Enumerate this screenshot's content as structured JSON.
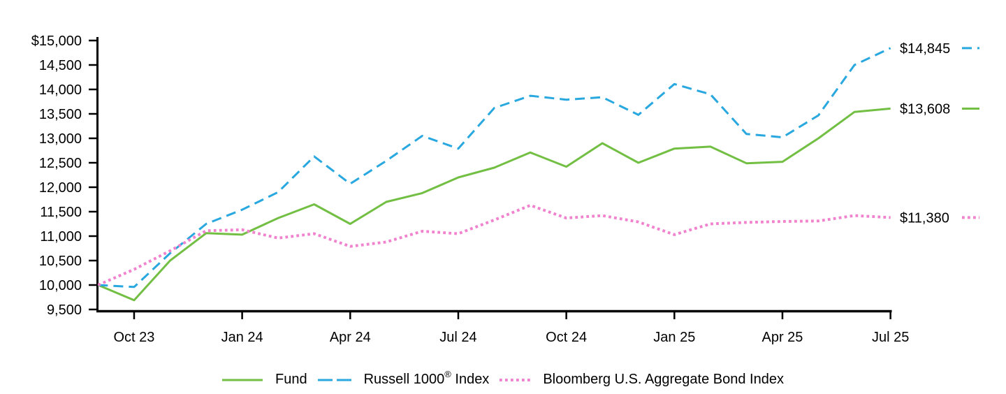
{
  "chart_data": {
    "type": "line",
    "title": "",
    "xlabel": "",
    "ylabel": "",
    "ylim": [
      9500,
      15000
    ],
    "grid": false,
    "legend_position": "bottom",
    "x": [
      "Sep 23",
      "Oct 23",
      "Nov 23",
      "Dec 23",
      "Jan 24",
      "Feb 24",
      "Mar 24",
      "Apr 24",
      "May 24",
      "Jun 24",
      "Jul 24",
      "Aug 24",
      "Sep 24",
      "Oct 24",
      "Nov 24",
      "Dec 24",
      "Jan 25",
      "Feb 25",
      "Mar 25",
      "Apr 25",
      "May 25",
      "Jun 25",
      "Jul 25"
    ],
    "x_tick_labels": [
      "Oct 23",
      "Jan 24",
      "Apr 24",
      "Jul 24",
      "Oct 24",
      "Jan 25",
      "Apr 25",
      "Jul 25"
    ],
    "x_tick_indices": [
      1,
      4,
      7,
      10,
      13,
      16,
      19,
      22
    ],
    "y_ticks": [
      15000,
      14500,
      14000,
      13500,
      13000,
      12500,
      12000,
      11500,
      11000,
      10500,
      10000,
      9500
    ],
    "y_tick_labels": [
      "$15,000",
      "14,500",
      "14,000",
      "13,500",
      "13,000",
      "12,500",
      "12,000",
      "11,500",
      "11,000",
      "10,500",
      "10,000",
      "9,500"
    ],
    "series": [
      {
        "name": "Fund",
        "color": "#72BF44",
        "style": "solid",
        "end_label": "$13,608",
        "values": [
          10000,
          9690,
          10500,
          11060,
          11030,
          11370,
          11650,
          11250,
          11700,
          11880,
          12200,
          12400,
          12710,
          12420,
          12900,
          12500,
          12790,
          12830,
          12490,
          12520,
          13000,
          13540,
          13608
        ]
      },
      {
        "name": "Russell 1000® Index",
        "color": "#29A8E0",
        "style": "dashed",
        "end_label": "$14,845",
        "values": [
          10000,
          9960,
          10650,
          11250,
          11540,
          11900,
          12630,
          12070,
          12540,
          13050,
          12790,
          13620,
          13870,
          13790,
          13840,
          13480,
          14110,
          13900,
          13090,
          13020,
          13470,
          14500,
          14845
        ]
      },
      {
        "name": "Bloomberg U.S. Aggregate Bond Index",
        "color": "#F183CE",
        "style": "dotted",
        "end_label": "$11,380",
        "values": [
          10000,
          10320,
          10700,
          11110,
          11130,
          10960,
          11050,
          10790,
          10880,
          11100,
          11050,
          11330,
          11630,
          11370,
          11420,
          11290,
          11030,
          11250,
          11280,
          11300,
          11310,
          11420,
          11380
        ]
      }
    ],
    "colors": {
      "axis": "#000000",
      "text": "#000000"
    }
  }
}
